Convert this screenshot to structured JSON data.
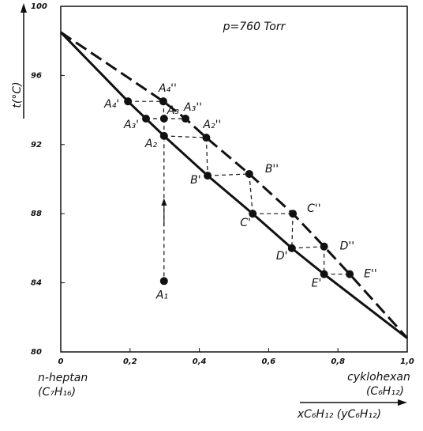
{
  "chart_data": {
    "type": "line",
    "title": "p=760 Torr",
    "y_label": "t(°C)",
    "x_label": "xC₆H₁₂ (yC₆H₁₂)",
    "x_left_label": "n-heptan",
    "x_left_formula": "(C₇H₁₆)",
    "x_right_label": "cyklohexan",
    "x_right_formula": "(C₆H₁₂)",
    "xlim": [
      0,
      1.0
    ],
    "ylim": [
      80,
      100
    ],
    "xticks": [
      0,
      {
        "value": 0.2,
        "label": "0,2"
      },
      {
        "value": 0.4,
        "label": "0,4"
      },
      {
        "value": 0.6,
        "label": "0,6"
      },
      {
        "value": 0.8,
        "label": "0,8"
      },
      {
        "value": 1.0,
        "label": "1,0"
      }
    ],
    "yticks": [
      80,
      84,
      88,
      92,
      96,
      100
    ],
    "series": [
      {
        "color": "#111111",
        "dash": false,
        "x": [
          0,
          0.194,
          0.246,
          0.298,
          0.424,
          0.554,
          0.667,
          0.76,
          1.0
        ],
        "values": [
          98.5,
          94.5,
          93.5,
          92.5,
          90.2,
          88.0,
          86.0,
          84.5,
          80.8
        ]
      },
      {
        "color": "#111111",
        "dash": true,
        "x": [
          0,
          0.296,
          0.36,
          0.42,
          0.544,
          0.67,
          0.76,
          0.834,
          1.0
        ],
        "values": [
          98.5,
          94.5,
          93.5,
          92.4,
          90.3,
          88.0,
          86.1,
          84.5,
          80.8
        ]
      }
    ],
    "points": {
      "color": "#111111",
      "labels": [
        "A₄'",
        "A₄''",
        "A₃'",
        "A₃",
        "A₃''",
        "A₂",
        "A₂''",
        "B'",
        "B''",
        "C'",
        "C''",
        "D'",
        "D''",
        "E'",
        "E''",
        "A₁"
      ],
      "x": [
        0.194,
        0.296,
        0.246,
        0.298,
        0.36,
        0.298,
        0.42,
        0.424,
        0.544,
        0.554,
        0.67,
        0.667,
        0.76,
        0.76,
        0.834,
        0.298
      ],
      "values": [
        94.5,
        94.5,
        93.5,
        93.5,
        93.5,
        92.5,
        92.4,
        90.2,
        90.3,
        88.0,
        88.0,
        86.0,
        86.1,
        84.5,
        84.5,
        84.1
      ]
    }
  }
}
